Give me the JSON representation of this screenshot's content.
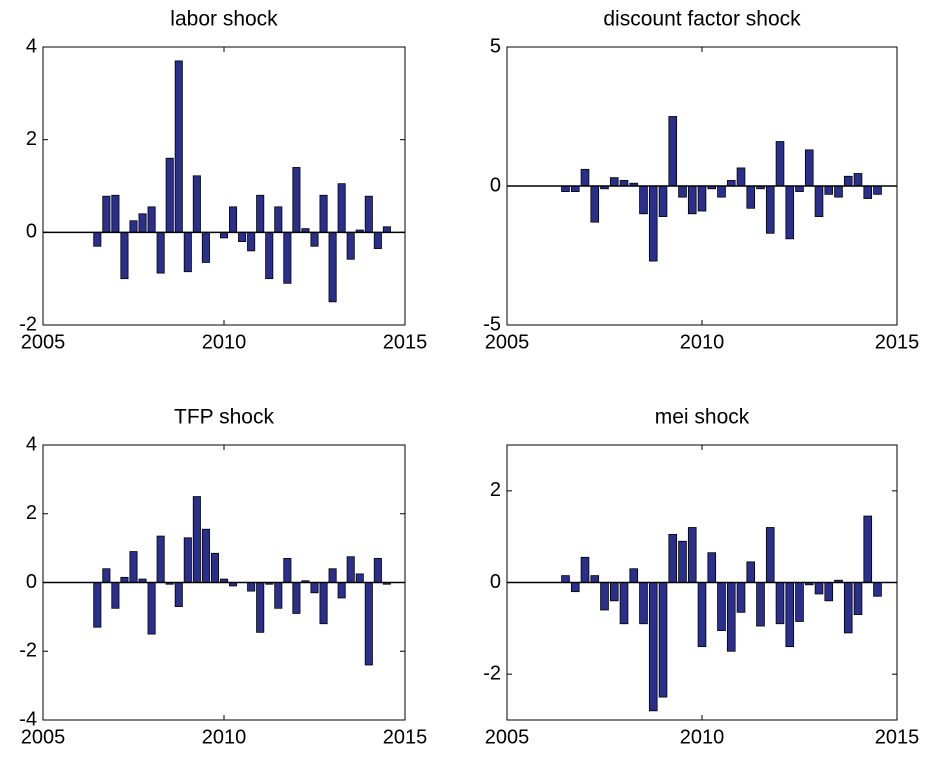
{
  "chart_data": [
    {
      "type": "bar",
      "title": "labor shock",
      "color": "#2b2f8c",
      "x": [
        2006.5,
        2006.75,
        2007,
        2007.25,
        2007.5,
        2007.75,
        2008,
        2008.25,
        2008.5,
        2008.75,
        2009,
        2009.25,
        2009.5,
        2009.75,
        2010,
        2010.25,
        2010.5,
        2010.75,
        2011,
        2011.25,
        2011.5,
        2011.75,
        2012,
        2012.25,
        2012.5,
        2012.75,
        2013,
        2013.25,
        2013.5,
        2013.75,
        2014,
        2014.25,
        2014.5
      ],
      "values": [
        -0.3,
        0.78,
        0.8,
        -1.0,
        0.25,
        0.4,
        0.55,
        -0.88,
        1.6,
        3.7,
        -0.85,
        1.22,
        -0.65,
        0.0,
        -0.12,
        0.55,
        -0.2,
        -0.4,
        0.8,
        -1.0,
        0.55,
        -1.1,
        1.4,
        0.08,
        -0.3,
        0.8,
        -1.5,
        1.05,
        -0.58,
        0.05,
        0.78,
        -0.35,
        0.12
      ],
      "xlim": [
        2005,
        2015
      ],
      "xticks": [
        2005,
        2010,
        2015
      ],
      "ylim": [
        -2,
        4
      ],
      "yticks": [
        -2,
        0,
        2,
        4
      ]
    },
    {
      "type": "bar",
      "title": "discount factor shock",
      "color": "#2b2f8c",
      "x": [
        2006.5,
        2006.75,
        2007,
        2007.25,
        2007.5,
        2007.75,
        2008,
        2008.25,
        2008.5,
        2008.75,
        2009,
        2009.25,
        2009.5,
        2009.75,
        2010,
        2010.25,
        2010.5,
        2010.75,
        2011,
        2011.25,
        2011.5,
        2011.75,
        2012,
        2012.25,
        2012.5,
        2012.75,
        2013,
        2013.25,
        2013.5,
        2013.75,
        2014,
        2014.25,
        2014.5
      ],
      "values": [
        -0.2,
        -0.2,
        0.6,
        -1.3,
        -0.1,
        0.3,
        0.2,
        0.1,
        -1.0,
        -2.7,
        -1.1,
        2.5,
        -0.4,
        -1.0,
        -0.9,
        -0.1,
        -0.4,
        0.2,
        0.65,
        -0.8,
        -0.1,
        -1.7,
        1.6,
        -1.9,
        -0.2,
        1.3,
        -1.1,
        -0.3,
        -0.4,
        0.35,
        0.45,
        -0.45,
        -0.3
      ],
      "xlim": [
        2005,
        2015
      ],
      "xticks": [
        2005,
        2010,
        2015
      ],
      "ylim": [
        -5,
        5
      ],
      "yticks": [
        -5,
        0,
        5
      ]
    },
    {
      "type": "bar",
      "title": "TFP shock",
      "color": "#2b2f8c",
      "x": [
        2006.5,
        2006.75,
        2007,
        2007.25,
        2007.5,
        2007.75,
        2008,
        2008.25,
        2008.5,
        2008.75,
        2009,
        2009.25,
        2009.5,
        2009.75,
        2010,
        2010.25,
        2010.5,
        2010.75,
        2011,
        2011.25,
        2011.5,
        2011.75,
        2012,
        2012.25,
        2012.5,
        2012.75,
        2013,
        2013.25,
        2013.5,
        2013.75,
        2014,
        2014.25,
        2014.5
      ],
      "values": [
        -1.3,
        0.4,
        -0.75,
        0.15,
        0.9,
        0.1,
        -1.5,
        1.35,
        -0.05,
        -0.7,
        1.3,
        2.5,
        1.55,
        0.85,
        0.1,
        -0.1,
        0.0,
        -0.25,
        -1.45,
        -0.05,
        -0.75,
        0.7,
        -0.9,
        0.05,
        -0.3,
        -1.2,
        0.4,
        -0.45,
        0.75,
        0.25,
        -2.4,
        0.7,
        -0.05
      ],
      "xlim": [
        2005,
        2015
      ],
      "xticks": [
        2005,
        2010,
        2015
      ],
      "ylim": [
        -4,
        4
      ],
      "yticks": [
        -4,
        -2,
        0,
        2,
        4
      ]
    },
    {
      "type": "bar",
      "title": "mei shock",
      "color": "#2b2f8c",
      "x": [
        2006.5,
        2006.75,
        2007,
        2007.25,
        2007.5,
        2007.75,
        2008,
        2008.25,
        2008.5,
        2008.75,
        2009,
        2009.25,
        2009.5,
        2009.75,
        2010,
        2010.25,
        2010.5,
        2010.75,
        2011,
        2011.25,
        2011.5,
        2011.75,
        2012,
        2012.25,
        2012.5,
        2012.75,
        2013,
        2013.25,
        2013.5,
        2013.75,
        2014,
        2014.25,
        2014.5
      ],
      "values": [
        0.15,
        -0.2,
        0.55,
        0.15,
        -0.6,
        -0.4,
        -0.9,
        0.3,
        -0.9,
        -2.8,
        -2.5,
        1.05,
        0.9,
        1.2,
        -1.4,
        0.65,
        -1.05,
        -1.5,
        -0.65,
        0.45,
        -0.95,
        1.2,
        -0.9,
        -1.4,
        -0.85,
        -0.05,
        -0.25,
        -0.4,
        0.05,
        -1.1,
        -0.7,
        1.45,
        -0.3
      ],
      "xlim": [
        2005,
        2015
      ],
      "xticks": [
        2005,
        2010,
        2015
      ],
      "ylim": [
        -3,
        3
      ],
      "yticks": [
        -2,
        0,
        2
      ]
    }
  ]
}
